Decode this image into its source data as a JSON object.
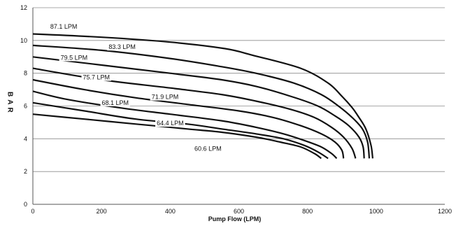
{
  "chart_data": {
    "type": "line",
    "title": "",
    "xlabel": "Pump Flow (LPM)",
    "ylabel": "BAR",
    "xlim": [
      0,
      1200
    ],
    "ylim": [
      0,
      12
    ],
    "xticks": [
      0,
      200,
      400,
      600,
      800,
      1000,
      1200
    ],
    "yticks": [
      0,
      2,
      4,
      6,
      8,
      10,
      12
    ],
    "grid": "horizontal",
    "legend": "none",
    "series": [
      {
        "name": "87.1 LPM",
        "x": [
          0,
          200,
          400,
          560,
          640,
          780,
          860,
          900,
          930,
          950,
          970,
          985,
          990
        ],
        "y": [
          10.4,
          10.2,
          9.9,
          9.5,
          9.1,
          8.3,
          7.4,
          6.6,
          5.9,
          5.3,
          4.6,
          3.6,
          2.8
        ]
      },
      {
        "name": "83.3 LPM",
        "x": [
          0,
          200,
          400,
          550,
          650,
          760,
          840,
          890,
          930,
          960,
          975,
          980
        ],
        "y": [
          9.7,
          9.4,
          8.9,
          8.4,
          8.0,
          7.4,
          6.7,
          6.0,
          5.3,
          4.6,
          3.8,
          2.8
        ]
      },
      {
        "name": "79.5 LPM",
        "x": [
          0,
          200,
          400,
          550,
          650,
          750,
          830,
          880,
          920,
          950,
          962,
          965
        ],
        "y": [
          9.0,
          8.5,
          8.0,
          7.6,
          7.2,
          6.6,
          6.0,
          5.4,
          4.8,
          4.1,
          3.5,
          2.8
        ]
      },
      {
        "name": "75.7 LPM",
        "x": [
          0,
          200,
          400,
          550,
          650,
          750,
          820,
          870,
          905,
          930,
          940
        ],
        "y": [
          8.3,
          7.6,
          7.1,
          6.7,
          6.3,
          5.8,
          5.3,
          4.7,
          4.1,
          3.4,
          2.8
        ]
      },
      {
        "name": "71.9 LPM",
        "x": [
          0,
          150,
          300,
          450,
          600,
          700,
          780,
          840,
          880,
          900,
          905
        ],
        "y": [
          7.6,
          7.0,
          6.5,
          6.1,
          5.7,
          5.3,
          4.8,
          4.3,
          3.8,
          3.3,
          2.8
        ]
      },
      {
        "name": "68.1 LPM",
        "x": [
          0,
          100,
          250,
          400,
          550,
          650,
          730,
          790,
          840,
          870,
          885
        ],
        "y": [
          6.9,
          6.4,
          5.9,
          5.5,
          5.1,
          4.7,
          4.3,
          3.9,
          3.5,
          3.1,
          2.8
        ]
      },
      {
        "name": "64.4 LPM",
        "x": [
          0,
          150,
          300,
          450,
          550,
          650,
          730,
          790,
          830,
          860
        ],
        "y": [
          6.2,
          5.7,
          5.2,
          4.9,
          4.6,
          4.3,
          4.0,
          3.6,
          3.2,
          2.8
        ]
      },
      {
        "name": "60.6 LPM",
        "x": [
          0,
          150,
          300,
          450,
          550,
          650,
          720,
          780,
          820,
          840
        ],
        "y": [
          5.5,
          5.2,
          4.9,
          4.6,
          4.4,
          4.1,
          3.8,
          3.5,
          3.1,
          2.8
        ]
      }
    ],
    "curve_labels": [
      {
        "text": "87.1 LPM",
        "x": 90,
        "y": 10.85
      },
      {
        "text": "83.3 LPM",
        "x": 260,
        "y": 9.6
      },
      {
        "text": "79.5 LPM",
        "x": 120,
        "y": 8.95
      },
      {
        "text": "75.7 LPM",
        "x": 185,
        "y": 7.75
      },
      {
        "text": "71.9 LPM",
        "x": 385,
        "y": 6.55
      },
      {
        "text": "68.1 LPM",
        "x": 240,
        "y": 6.2
      },
      {
        "text": "64.4 LPM",
        "x": 400,
        "y": 4.95
      },
      {
        "text": "60.6 LPM",
        "x": 510,
        "y": 3.4
      }
    ]
  }
}
